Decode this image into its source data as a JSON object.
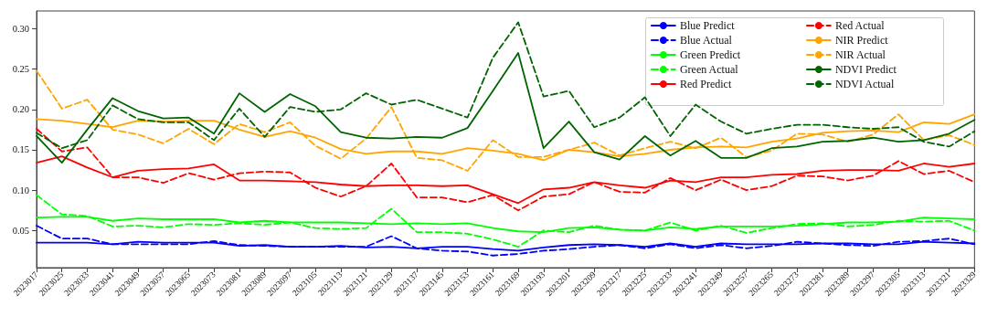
{
  "chart_data": {
    "type": "line",
    "categories": [
      "2023017",
      "2023025",
      "2023033",
      "2023041",
      "2023049",
      "2023057",
      "2023065",
      "2023073",
      "2023081",
      "2023089",
      "2023097",
      "2023105",
      "2023113",
      "2023121",
      "2023129",
      "2023137",
      "2023145",
      "2023153",
      "2023161",
      "2023169",
      "2023193",
      "2023201",
      "2023209",
      "2023217",
      "2023225",
      "2023233",
      "2023241",
      "2023249",
      "2023257",
      "2023265",
      "2023273",
      "2023281",
      "2023289",
      "2023297",
      "2023305",
      "2023313",
      "2023321",
      "2023329"
    ],
    "series": [
      {
        "name": "Blue Predict",
        "color": "#0000ff",
        "line_style": "solid",
        "values": [
          0.035,
          0.035,
          0.035,
          0.033,
          0.036,
          0.035,
          0.035,
          0.035,
          0.031,
          0.032,
          0.03,
          0.03,
          0.031,
          0.029,
          0.03,
          0.028,
          0.03,
          0.03,
          0.027,
          0.025,
          0.029,
          0.032,
          0.033,
          0.032,
          0.03,
          0.034,
          0.03,
          0.034,
          0.033,
          0.033,
          0.033,
          0.034,
          0.034,
          0.033,
          0.033,
          0.036,
          0.035,
          0.034
        ]
      },
      {
        "name": "Blue Actual",
        "color": "#0000ff",
        "line_style": "dashed",
        "values": [
          0.056,
          0.04,
          0.04,
          0.033,
          0.033,
          0.033,
          0.033,
          0.037,
          0.032,
          0.031,
          0.03,
          0.03,
          0.03,
          0.03,
          0.043,
          0.028,
          0.025,
          0.024,
          0.019,
          0.021,
          0.025,
          0.027,
          0.03,
          0.032,
          0.028,
          0.033,
          0.028,
          0.032,
          0.028,
          0.031,
          0.036,
          0.034,
          0.032,
          0.031,
          0.036,
          0.037,
          0.04,
          0.033
        ]
      },
      {
        "name": "Green Predict",
        "color": "#00ff00",
        "line_style": "solid",
        "values": [
          0.066,
          0.067,
          0.067,
          0.062,
          0.065,
          0.064,
          0.064,
          0.064,
          0.06,
          0.062,
          0.06,
          0.06,
          0.06,
          0.059,
          0.058,
          0.059,
          0.058,
          0.059,
          0.053,
          0.049,
          0.048,
          0.053,
          0.054,
          0.051,
          0.05,
          0.054,
          0.052,
          0.055,
          0.055,
          0.055,
          0.056,
          0.058,
          0.06,
          0.06,
          0.061,
          0.066,
          0.065,
          0.064
        ]
      },
      {
        "name": "Green Actual",
        "color": "#00ff00",
        "line_style": "dashed",
        "values": [
          0.094,
          0.07,
          0.068,
          0.055,
          0.056,
          0.054,
          0.058,
          0.057,
          0.059,
          0.057,
          0.06,
          0.053,
          0.052,
          0.053,
          0.077,
          0.048,
          0.048,
          0.046,
          0.039,
          0.03,
          0.05,
          0.048,
          0.056,
          0.051,
          0.05,
          0.06,
          0.05,
          0.056,
          0.047,
          0.053,
          0.058,
          0.059,
          0.055,
          0.057,
          0.062,
          0.061,
          0.062,
          0.05
        ]
      },
      {
        "name": "Red Predict",
        "color": "#ff0000",
        "line_style": "solid",
        "values": [
          0.134,
          0.142,
          0.128,
          0.116,
          0.124,
          0.126,
          0.127,
          0.132,
          0.112,
          0.112,
          0.111,
          0.11,
          0.107,
          0.105,
          0.106,
          0.106,
          0.105,
          0.106,
          0.095,
          0.084,
          0.101,
          0.103,
          0.11,
          0.106,
          0.103,
          0.112,
          0.11,
          0.116,
          0.116,
          0.119,
          0.12,
          0.124,
          0.125,
          0.125,
          0.124,
          0.133,
          0.129,
          0.133
        ]
      },
      {
        "name": "Red Actual",
        "color": "#ff0000",
        "line_style": "dashed",
        "values": [
          0.176,
          0.148,
          0.153,
          0.116,
          0.116,
          0.109,
          0.121,
          0.113,
          0.121,
          0.123,
          0.122,
          0.103,
          0.092,
          0.105,
          0.133,
          0.091,
          0.091,
          0.085,
          0.094,
          0.075,
          0.092,
          0.095,
          0.11,
          0.098,
          0.097,
          0.115,
          0.1,
          0.113,
          0.1,
          0.105,
          0.118,
          0.117,
          0.112,
          0.118,
          0.136,
          0.12,
          0.124,
          0.11
        ]
      },
      {
        "name": "NIR Predict",
        "color": "#ffa500",
        "line_style": "solid",
        "values": [
          0.188,
          0.186,
          0.182,
          0.178,
          0.186,
          0.185,
          0.186,
          0.186,
          0.175,
          0.166,
          0.173,
          0.165,
          0.151,
          0.145,
          0.148,
          0.148,
          0.145,
          0.152,
          0.149,
          0.145,
          0.137,
          0.15,
          0.147,
          0.142,
          0.145,
          0.15,
          0.153,
          0.154,
          0.153,
          0.16,
          0.164,
          0.171,
          0.173,
          0.174,
          0.172,
          0.184,
          0.182,
          0.194
        ]
      },
      {
        "name": "NIR Actual",
        "color": "#ffa500",
        "line_style": "dashed",
        "values": [
          0.248,
          0.201,
          0.212,
          0.175,
          0.169,
          0.158,
          0.176,
          0.157,
          0.182,
          0.172,
          0.184,
          0.155,
          0.139,
          0.164,
          0.203,
          0.14,
          0.137,
          0.124,
          0.162,
          0.141,
          0.141,
          0.15,
          0.159,
          0.143,
          0.152,
          0.16,
          0.152,
          0.165,
          0.141,
          0.149,
          0.17,
          0.169,
          0.16,
          0.169,
          0.194,
          0.162,
          0.168,
          0.156
        ]
      },
      {
        "name": "NDVI Predict",
        "color": "#006400",
        "line_style": "solid",
        "values": [
          0.167,
          0.134,
          0.175,
          0.214,
          0.198,
          0.189,
          0.19,
          0.17,
          0.22,
          0.197,
          0.219,
          0.204,
          0.172,
          0.165,
          0.164,
          0.166,
          0.165,
          0.177,
          0.223,
          0.27,
          0.152,
          0.185,
          0.147,
          0.138,
          0.167,
          0.143,
          0.161,
          0.14,
          0.14,
          0.152,
          0.154,
          0.16,
          0.161,
          0.165,
          0.16,
          0.162,
          0.17,
          0.187
        ]
      },
      {
        "name": "NDVI Actual",
        "color": "#006400",
        "line_style": "dashed",
        "values": [
          0.171,
          0.152,
          0.162,
          0.205,
          0.188,
          0.184,
          0.184,
          0.162,
          0.201,
          0.166,
          0.203,
          0.197,
          0.2,
          0.22,
          0.206,
          0.212,
          0.201,
          0.19,
          0.264,
          0.308,
          0.216,
          0.223,
          0.178,
          0.19,
          0.215,
          0.167,
          0.206,
          0.185,
          0.17,
          0.176,
          0.181,
          0.181,
          0.178,
          0.176,
          0.178,
          0.16,
          0.154,
          0.173
        ]
      }
    ],
    "ylim": [
      0.004,
      0.322
    ],
    "yticks": [
      0.05,
      {
        "value": 0.1,
        "label": "0.10"
      },
      0.15,
      {
        "value": 0.2,
        "label": "0.20"
      },
      0.25,
      {
        "value": 0.3,
        "label": "0.30"
      }
    ],
    "grid": false,
    "legend": "top right",
    "marker": "none"
  }
}
